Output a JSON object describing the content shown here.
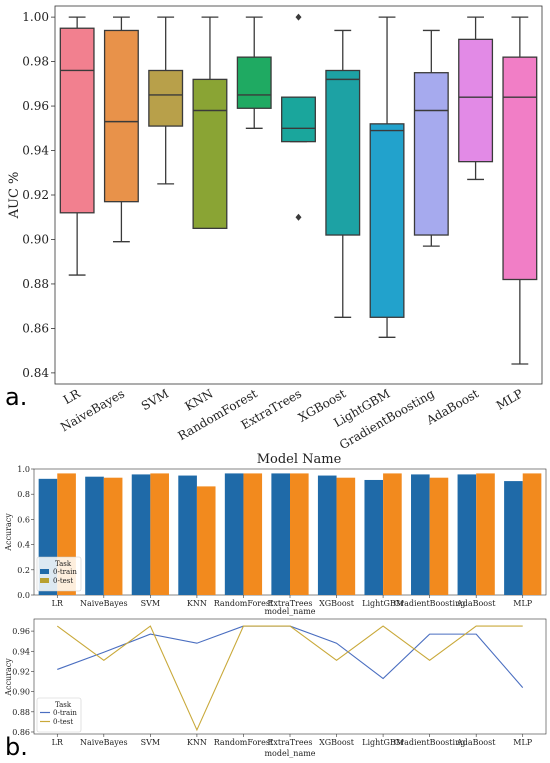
{
  "panel_labels": {
    "a": "a.",
    "b": "b."
  },
  "colors": {
    "LR": "#f2808f",
    "NaiveBayes": "#e8924a",
    "SVM": "#b8a04a",
    "KNN": "#8aa434",
    "RandomForest": "#1faa62",
    "ExtraTrees": "#1aa69c",
    "XGBoost": "#1da2a4",
    "LightGBM": "#22a2cc",
    "GradientBoosting": "#a6aaee",
    "AdaBoost": "#e28ae6",
    "MLP": "#f17ec6",
    "train_bar": "#1f6aa8",
    "test_bar": "#f28a1e",
    "train_line": "#4a6ec0",
    "test_line": "#c9a93a",
    "legend_train_swatch": "#1f6aa8",
    "legend_test_swatch": "#b8a030"
  },
  "chart_data": [
    {
      "type": "box",
      "title": "",
      "xlabel": "Model Name",
      "ylabel": "AUC %",
      "ylim": [
        0.835,
        1.005
      ],
      "yticks": [
        "0.84",
        "0.86",
        "0.88",
        "0.90",
        "0.92",
        "0.94",
        "0.96",
        "0.98",
        "1.00"
      ],
      "categories": [
        "LR",
        "NaiveBayes",
        "SVM",
        "KNN",
        "RandomForest",
        "ExtraTrees",
        "XGBoost",
        "LightGBM",
        "GradientBoosting",
        "AdaBoost",
        "MLP"
      ],
      "boxes": [
        {
          "name": "LR",
          "whislo": 0.884,
          "q1": 0.912,
          "med": 0.976,
          "q3": 0.995,
          "whishi": 1.0,
          "fliers": []
        },
        {
          "name": "NaiveBayes",
          "whislo": 0.899,
          "q1": 0.917,
          "med": 0.953,
          "q3": 0.994,
          "whishi": 1.0,
          "fliers": []
        },
        {
          "name": "SVM",
          "whislo": 0.925,
          "q1": 0.951,
          "med": 0.965,
          "q3": 0.976,
          "whishi": 1.0,
          "fliers": []
        },
        {
          "name": "KNN",
          "whislo": 0.905,
          "q1": 0.905,
          "med": 0.958,
          "q3": 0.972,
          "whishi": 1.0,
          "fliers": []
        },
        {
          "name": "RandomForest",
          "whislo": 0.95,
          "q1": 0.959,
          "med": 0.965,
          "q3": 0.982,
          "whishi": 1.0,
          "fliers": []
        },
        {
          "name": "ExtraTrees",
          "whislo": 0.944,
          "q1": 0.944,
          "med": 0.95,
          "q3": 0.964,
          "whishi": 0.964,
          "fliers": [
            0.91,
            1.0
          ]
        },
        {
          "name": "XGBoost",
          "whislo": 0.865,
          "q1": 0.902,
          "med": 0.972,
          "q3": 0.976,
          "whishi": 0.994,
          "fliers": []
        },
        {
          "name": "LightGBM",
          "whislo": 0.856,
          "q1": 0.865,
          "med": 0.949,
          "q3": 0.952,
          "whishi": 1.0,
          "fliers": []
        },
        {
          "name": "GradientBoosting",
          "whislo": 0.897,
          "q1": 0.902,
          "med": 0.958,
          "q3": 0.975,
          "whishi": 0.994,
          "fliers": []
        },
        {
          "name": "AdaBoost",
          "whislo": 0.927,
          "q1": 0.935,
          "med": 0.964,
          "q3": 0.99,
          "whishi": 1.0,
          "fliers": []
        },
        {
          "name": "MLP",
          "whislo": 0.844,
          "q1": 0.882,
          "med": 0.964,
          "q3": 0.982,
          "whishi": 1.0,
          "fliers": []
        }
      ]
    },
    {
      "type": "bar",
      "xlabel": "model_name",
      "ylabel": "Accuracy",
      "ylim": [
        0,
        1.0
      ],
      "yticks": [
        "0.0",
        "0.2",
        "0.4",
        "0.6",
        "0.8",
        "1.0"
      ],
      "legend_title": "Task",
      "legend_position": "lower-left",
      "categories": [
        "LR",
        "NaiveBayes",
        "SVM",
        "KNN",
        "RandomForest",
        "ExtraTrees",
        "XGBoost",
        "LightGBM",
        "GradientBoosting",
        "AdaBoost",
        "MLP"
      ],
      "series": [
        {
          "name": "0-train",
          "values": [
            0.922,
            0.939,
            0.957,
            0.948,
            0.965,
            0.965,
            0.948,
            0.913,
            0.957,
            0.957,
            0.904
          ]
        },
        {
          "name": "0-test",
          "values": [
            0.965,
            0.931,
            0.965,
            0.862,
            0.965,
            0.965,
            0.931,
            0.965,
            0.931,
            0.965,
            0.965
          ]
        }
      ]
    },
    {
      "type": "line",
      "xlabel": "model_name",
      "ylabel": "Accuracy",
      "ylim": [
        0.858,
        0.972
      ],
      "yticks": [
        "0.86",
        "0.88",
        "0.90",
        "0.92",
        "0.94",
        "0.96"
      ],
      "legend_title": "Task",
      "legend_position": "lower-left",
      "categories": [
        "LR",
        "NaiveBayes",
        "SVM",
        "KNN",
        "RandomForest",
        "ExtraTrees",
        "XGBoost",
        "LightGBM",
        "GradientBoosting",
        "AdaBoost",
        "MLP"
      ],
      "series": [
        {
          "name": "0-train",
          "values": [
            0.922,
            0.939,
            0.957,
            0.948,
            0.965,
            0.965,
            0.948,
            0.913,
            0.957,
            0.957,
            0.904
          ]
        },
        {
          "name": "0-test",
          "values": [
            0.965,
            0.931,
            0.965,
            0.862,
            0.965,
            0.965,
            0.931,
            0.965,
            0.931,
            0.965,
            0.965
          ]
        }
      ]
    }
  ]
}
